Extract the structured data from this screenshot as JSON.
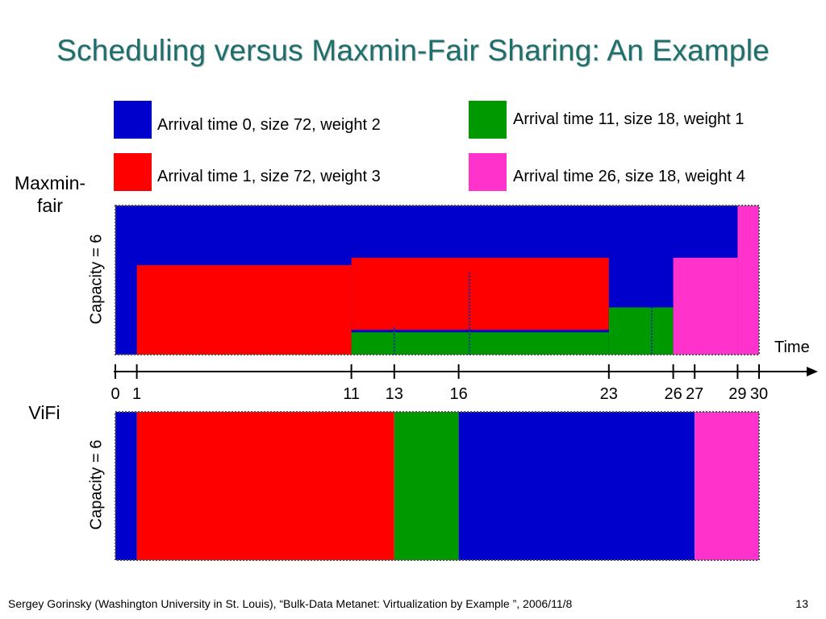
{
  "slide": {
    "title": "Scheduling versus Maxmin-Fair Sharing: An Example",
    "footer": "Sergey Gorinsky (Washington University in St. Louis), “Bulk-Data Metanet: Virtualization by Example ”, 2006/11/8",
    "page_number": "13"
  },
  "legend": [
    {
      "label": "Arrival time 0, size 72, weight 2",
      "color": "#0000cc"
    },
    {
      "label": "Arrival time 1, size 72, weight 3",
      "color": "#ff0000"
    },
    {
      "label": "Arrival time 11, size 18, weight 1",
      "color": "#009900"
    },
    {
      "label": "Arrival time 26, size 18, weight 4",
      "color": "#ff33cc"
    }
  ],
  "labels": {
    "maxmin": "Maxmin-\nfair",
    "vifi": "ViFi",
    "capacity": "Capacity = 6",
    "time": "Time"
  },
  "axis": {
    "ticks": [
      0,
      1,
      11,
      13,
      16,
      23,
      26,
      27,
      29,
      30
    ],
    "range": [
      0,
      30
    ]
  },
  "diagram": {
    "capacity": 6,
    "maxmin_blocks": [
      {
        "flow": 1,
        "color": "#ff0000",
        "t0": 1,
        "t1": 11,
        "bottom": 0,
        "top": 3.6
      },
      {
        "flow": 1,
        "color": "#ff0000",
        "t0": 11,
        "t1": 23,
        "bottom": 1,
        "top": 3.9
      },
      {
        "flow": 2,
        "color": "#009900",
        "t0": 11,
        "t1": 23,
        "bottom": 0,
        "top": 0.9
      },
      {
        "flow": 2,
        "color": "#009900",
        "t0": 23,
        "t1": 26,
        "bottom": 0,
        "top": 1.9
      },
      {
        "flow": 3,
        "color": "#ff33cc",
        "t0": 26,
        "t1": 29,
        "bottom": 0,
        "top": 3.9
      },
      {
        "flow": 3,
        "color": "#ff33cc",
        "t0": 29,
        "t1": 30,
        "bottom": 0,
        "top": 6
      }
    ],
    "vifi_blocks": [
      {
        "flow": 0,
        "color": "#0000cc",
        "t0": 0,
        "t1": 1
      },
      {
        "flow": 1,
        "color": "#ff0000",
        "t0": 1,
        "t1": 13
      },
      {
        "flow": 2,
        "color": "#009900",
        "t0": 13,
        "t1": 16
      },
      {
        "flow": 0,
        "color": "#0000cc",
        "t0": 16,
        "t1": 27
      },
      {
        "flow": 3,
        "color": "#ff33cc",
        "t0": 27,
        "t1": 30
      }
    ]
  }
}
